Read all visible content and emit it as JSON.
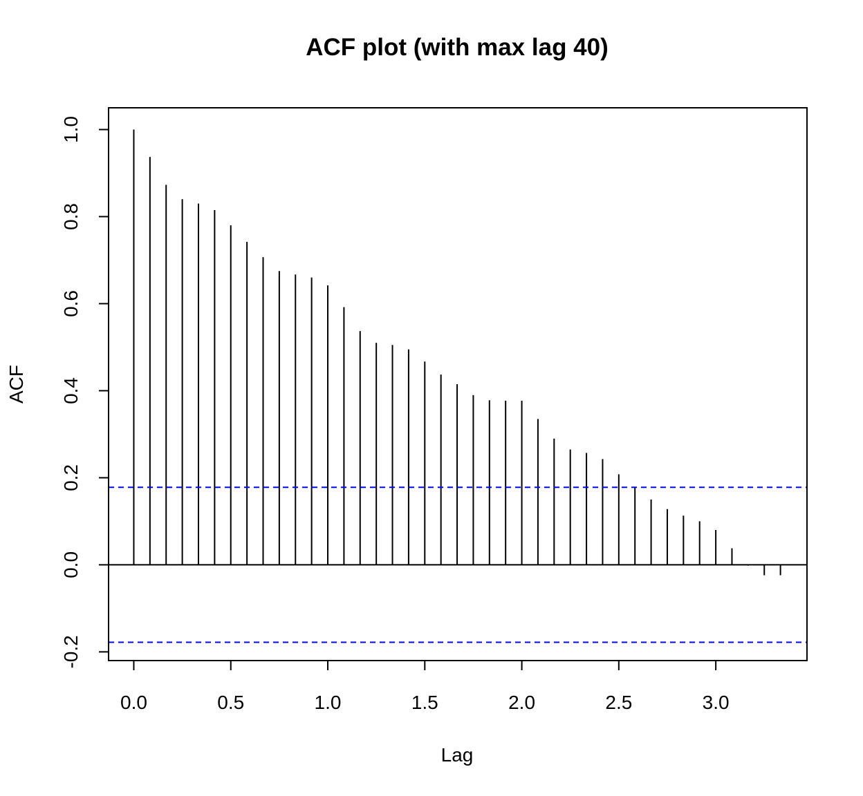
{
  "chart_data": {
    "type": "bar",
    "title": "ACF plot (with max lag 40)",
    "xlabel": "Lag",
    "ylabel": "ACF",
    "xlim": [
      -0.13,
      3.47
    ],
    "ylim": [
      -0.22,
      1.05
    ],
    "x_ticks": [
      0.0,
      0.5,
      1.0,
      1.5,
      2.0,
      2.5,
      3.0
    ],
    "x_tick_labels": [
      "0.0",
      "0.5",
      "1.0",
      "1.5",
      "2.0",
      "2.5",
      "3.0"
    ],
    "y_ticks": [
      -0.2,
      0.0,
      0.2,
      0.4,
      0.6,
      0.8,
      1.0
    ],
    "y_tick_labels": [
      "-0.2",
      "0.0",
      "0.2",
      "0.4",
      "0.6",
      "0.8",
      "1.0"
    ],
    "lag_step": 0.08333,
    "values": [
      1.0,
      0.937,
      0.873,
      0.84,
      0.83,
      0.815,
      0.78,
      0.742,
      0.707,
      0.675,
      0.667,
      0.66,
      0.642,
      0.592,
      0.537,
      0.51,
      0.505,
      0.495,
      0.467,
      0.437,
      0.415,
      0.39,
      0.378,
      0.377,
      0.377,
      0.335,
      0.29,
      0.265,
      0.257,
      0.243,
      0.208,
      0.178,
      0.15,
      0.128,
      0.113,
      0.1,
      0.08,
      0.038,
      -0.002,
      -0.024,
      -0.024
    ],
    "confidence_bound": 0.178,
    "grid": false,
    "colors": {
      "bars": "#000000",
      "confidence_lines": "#0000ff",
      "zero_line": "#000000"
    }
  }
}
